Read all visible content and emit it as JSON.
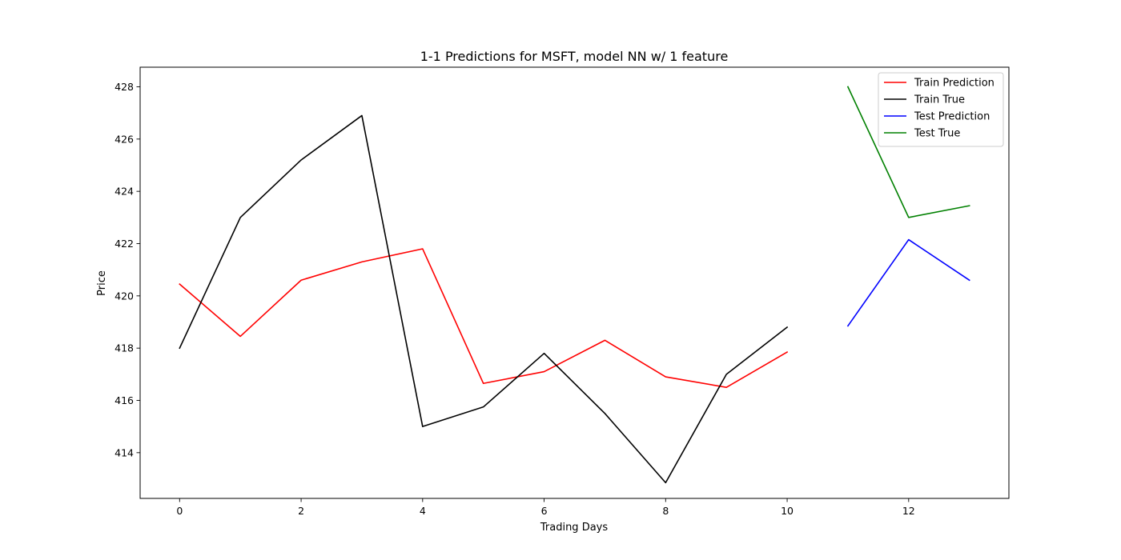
{
  "chart_data": {
    "type": "line",
    "title": "1-1 Predictions for MSFT, model NN w/ 1 feature",
    "xlabel": "Trading Days",
    "ylabel": "Price",
    "xlim": [
      -0.65,
      13.65
    ],
    "ylim": [
      412.25,
      428.75
    ],
    "xticks": [
      0,
      2,
      4,
      6,
      8,
      10,
      12
    ],
    "yticks": [
      414,
      416,
      418,
      420,
      422,
      424,
      426,
      428
    ],
    "grid": false,
    "legend_position": "top-right",
    "series": [
      {
        "name": "Train Prediction",
        "color": "#ff0000",
        "x": [
          0,
          1,
          2,
          3,
          4,
          5,
          6,
          7,
          8,
          9,
          10
        ],
        "y": [
          420.45,
          418.45,
          420.6,
          421.3,
          421.8,
          416.65,
          417.1,
          418.3,
          416.9,
          416.5,
          417.85
        ]
      },
      {
        "name": "Train True",
        "color": "#000000",
        "x": [
          0,
          1,
          2,
          3,
          4,
          5,
          6,
          7,
          8,
          9,
          10
        ],
        "y": [
          418.0,
          423.0,
          425.2,
          426.9,
          415.0,
          415.75,
          417.8,
          415.5,
          412.85,
          417.0,
          418.8
        ]
      },
      {
        "name": "Test Prediction",
        "color": "#0000ff",
        "x": [
          11,
          12,
          13
        ],
        "y": [
          418.85,
          422.15,
          420.6
        ]
      },
      {
        "name": "Test True",
        "color": "#008000",
        "x": [
          11,
          12,
          13
        ],
        "y": [
          428.0,
          423.0,
          423.45
        ]
      }
    ]
  }
}
